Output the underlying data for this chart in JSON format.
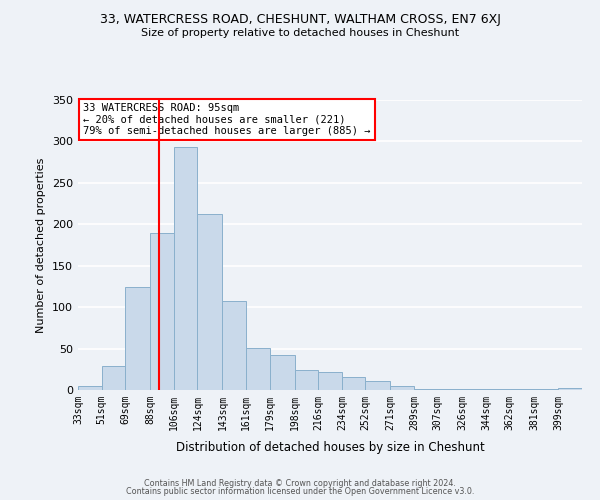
{
  "title": "33, WATERCRESS ROAD, CHESHUNT, WALTHAM CROSS, EN7 6XJ",
  "subtitle": "Size of property relative to detached houses in Cheshunt",
  "xlabel": "Distribution of detached houses by size in Cheshunt",
  "ylabel": "Number of detached properties",
  "bar_color": "#c9d9ea",
  "bar_edge_color": "#8ab0cc",
  "bg_color": "#eef2f7",
  "grid_color": "#ffffff",
  "vline_x": 95,
  "vline_color": "red",
  "annotation_title": "33 WATERCRESS ROAD: 95sqm",
  "annotation_line2": "← 20% of detached houses are smaller (221)",
  "annotation_line3": "79% of semi-detached houses are larger (885) →",
  "annotation_box_color": "white",
  "annotation_edge_color": "red",
  "bin_labels": [
    "33sqm",
    "51sqm",
    "69sqm",
    "88sqm",
    "106sqm",
    "124sqm",
    "143sqm",
    "161sqm",
    "179sqm",
    "198sqm",
    "216sqm",
    "234sqm",
    "252sqm",
    "271sqm",
    "289sqm",
    "307sqm",
    "326sqm",
    "344sqm",
    "362sqm",
    "381sqm",
    "399sqm"
  ],
  "bin_edges": [
    33,
    51,
    69,
    88,
    106,
    124,
    143,
    161,
    179,
    198,
    216,
    234,
    252,
    271,
    289,
    307,
    326,
    344,
    362,
    381,
    399
  ],
  "bar_heights": [
    5,
    29,
    124,
    190,
    293,
    213,
    108,
    51,
    42,
    24,
    22,
    16,
    11,
    5,
    1,
    1,
    1,
    1,
    1,
    1,
    3
  ],
  "ylim": [
    0,
    350
  ],
  "yticks": [
    0,
    50,
    100,
    150,
    200,
    250,
    300,
    350
  ],
  "footer1": "Contains HM Land Registry data © Crown copyright and database right 2024.",
  "footer2": "Contains public sector information licensed under the Open Government Licence v3.0."
}
